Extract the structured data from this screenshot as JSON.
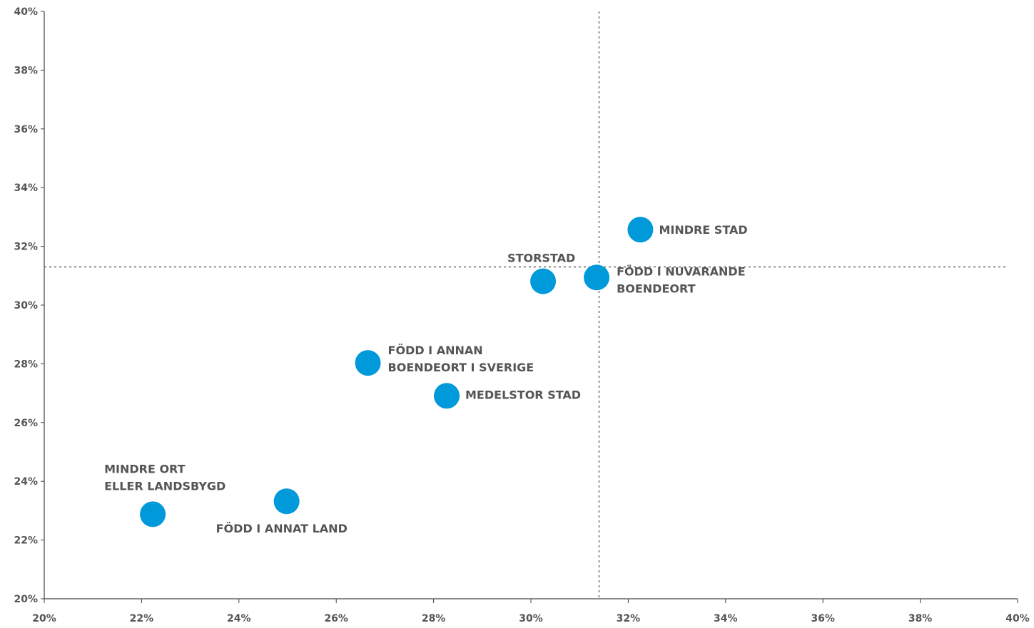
{
  "chart_data": {
    "type": "scatter",
    "title": "",
    "xlabel": "",
    "ylabel": "",
    "xlim": [
      0.2,
      0.4
    ],
    "ylim": [
      0.2,
      0.4
    ],
    "x_ticks": [
      "20%",
      "22%",
      "24%",
      "26%",
      "28%",
      "30%",
      "32%",
      "34%",
      "36%",
      "38%",
      "40%"
    ],
    "y_ticks": [
      "20%",
      "22%",
      "24%",
      "26%",
      "28%",
      "30%",
      "32%",
      "34%",
      "36%",
      "38%",
      "40%"
    ],
    "grid": false,
    "reference_lines": {
      "x": 0.314,
      "y": 0.313,
      "style": "dotted"
    },
    "marker_color": "#0099DA",
    "points": [
      {
        "label": [
          "MINDRE STAD"
        ],
        "x": 0.3225,
        "y": 0.3257
      },
      {
        "label": [
          "STORSTAD"
        ],
        "x": 0.3025,
        "y": 0.3081
      },
      {
        "label": [
          "FÖDD I NUVARANDE",
          "BOENDEORT"
        ],
        "x": 0.3135,
        "y": 0.3094
      },
      {
        "label": [
          "FÖDD I ANNAN",
          "BOENDEORT I SVERIGE"
        ],
        "x": 0.2665,
        "y": 0.2803
      },
      {
        "label": [
          "MEDELSTOR STAD",
          ""
        ],
        "x": 0.2827,
        "y": 0.2691
      },
      {
        "label": [
          "MINDRE ORT",
          "ELLER LANDSBYGD"
        ],
        "x": 0.2223,
        "y": 0.2288
      },
      {
        "label": [
          "FÖDD I ANNAT LAND"
        ],
        "x": 0.2498,
        "y": 0.2332
      }
    ]
  }
}
